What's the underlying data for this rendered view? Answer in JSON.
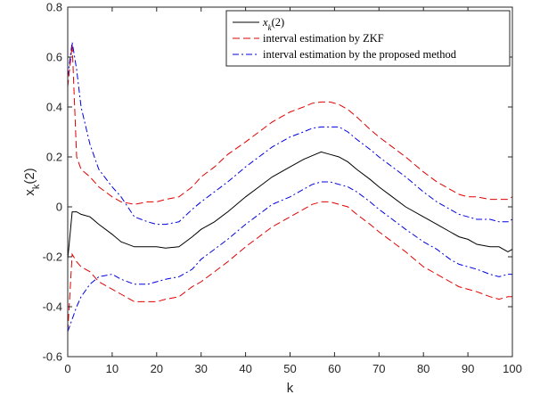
{
  "chart_data": {
    "type": "line",
    "title": "",
    "xlabel": "k",
    "ylabel": "x",
    "ylabel_sub": "k",
    "ylabel_paren": "(2)",
    "xlim": [
      0,
      100
    ],
    "ylim": [
      -0.6,
      0.8
    ],
    "xticks": [
      0,
      10,
      20,
      30,
      40,
      50,
      60,
      70,
      80,
      90,
      100
    ],
    "yticks": [
      -0.6,
      -0.4,
      -0.2,
      0,
      0.2,
      0.4,
      0.6,
      0.8
    ],
    "ytick_labels": [
      "-0.6",
      "-0.4",
      "-0.2",
      "0",
      "0.2",
      "0.4",
      "0.6",
      "0.8"
    ],
    "grid": false,
    "legend_position": "top-right",
    "legend": {
      "entry1_var": "x",
      "entry1_sub": "k",
      "entry1_paren": "(2)",
      "entry2": "interval estimation by ZKF",
      "entry3": "interval estimation by the proposed method"
    },
    "x": [
      0,
      1,
      2,
      3,
      5,
      7,
      10,
      12,
      15,
      18,
      20,
      22,
      25,
      28,
      30,
      33,
      36,
      40,
      43,
      46,
      50,
      53,
      55,
      57,
      59,
      61,
      63,
      65,
      68,
      70,
      73,
      76,
      80,
      83,
      86,
      88,
      90,
      92,
      95,
      97,
      99,
      100
    ],
    "series": [
      {
        "color": "#000000",
        "dash": "solid",
        "values": [
          -0.21,
          -0.02,
          -0.02,
          -0.03,
          -0.04,
          -0.07,
          -0.11,
          -0.14,
          -0.16,
          -0.16,
          -0.16,
          -0.165,
          -0.16,
          -0.12,
          -0.09,
          -0.06,
          -0.02,
          0.04,
          0.08,
          0.12,
          0.16,
          0.19,
          0.205,
          0.22,
          0.21,
          0.2,
          0.18,
          0.15,
          0.11,
          0.08,
          0.04,
          0.0,
          -0.04,
          -0.07,
          -0.1,
          -0.12,
          -0.13,
          -0.15,
          -0.16,
          -0.16,
          -0.18,
          -0.17
        ]
      },
      {
        "color": "#e00000",
        "dash": "dashed",
        "values": [
          0.48,
          0.65,
          0.2,
          0.15,
          0.12,
          0.08,
          0.04,
          0.02,
          0.01,
          0.02,
          0.02,
          0.03,
          0.04,
          0.08,
          0.12,
          0.16,
          0.21,
          0.26,
          0.3,
          0.34,
          0.38,
          0.4,
          0.415,
          0.42,
          0.42,
          0.41,
          0.39,
          0.36,
          0.31,
          0.28,
          0.24,
          0.2,
          0.14,
          0.1,
          0.07,
          0.05,
          0.04,
          0.04,
          0.03,
          0.03,
          0.03,
          0.04
        ]
      },
      {
        "color": "#e00000",
        "dash": "dashed",
        "values": [
          -0.5,
          -0.19,
          -0.22,
          -0.24,
          -0.26,
          -0.3,
          -0.33,
          -0.35,
          -0.38,
          -0.38,
          -0.38,
          -0.37,
          -0.36,
          -0.32,
          -0.3,
          -0.26,
          -0.22,
          -0.16,
          -0.12,
          -0.08,
          -0.04,
          -0.01,
          0.01,
          0.02,
          0.02,
          0.01,
          0.0,
          -0.03,
          -0.07,
          -0.1,
          -0.14,
          -0.18,
          -0.24,
          -0.27,
          -0.3,
          -0.32,
          -0.33,
          -0.34,
          -0.36,
          -0.37,
          -0.36,
          -0.36
        ]
      },
      {
        "color": "#0000e0",
        "dash": "dashdot",
        "values": [
          0.52,
          0.66,
          0.55,
          0.4,
          0.25,
          0.15,
          0.08,
          0.04,
          -0.04,
          -0.06,
          -0.07,
          -0.07,
          -0.06,
          -0.01,
          0.02,
          0.06,
          0.1,
          0.16,
          0.2,
          0.24,
          0.28,
          0.3,
          0.315,
          0.32,
          0.32,
          0.32,
          0.3,
          0.27,
          0.23,
          0.2,
          0.16,
          0.12,
          0.06,
          0.02,
          -0.01,
          -0.03,
          -0.04,
          -0.05,
          -0.05,
          -0.06,
          -0.06,
          -0.05
        ]
      },
      {
        "color": "#0000e0",
        "dash": "dashdot",
        "values": [
          -0.5,
          -0.45,
          -0.4,
          -0.36,
          -0.31,
          -0.28,
          -0.27,
          -0.29,
          -0.31,
          -0.31,
          -0.3,
          -0.29,
          -0.28,
          -0.25,
          -0.21,
          -0.17,
          -0.13,
          -0.07,
          -0.03,
          0.01,
          0.04,
          0.07,
          0.09,
          0.1,
          0.1,
          0.09,
          0.08,
          0.06,
          0.02,
          -0.01,
          -0.05,
          -0.09,
          -0.14,
          -0.17,
          -0.21,
          -0.23,
          -0.24,
          -0.25,
          -0.27,
          -0.28,
          -0.27,
          -0.27
        ]
      }
    ]
  }
}
